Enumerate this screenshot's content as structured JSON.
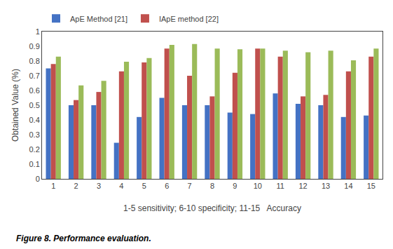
{
  "chart_data": {
    "type": "bar",
    "categories": [
      1,
      2,
      3,
      4,
      5,
      6,
      7,
      8,
      9,
      10,
      11,
      12,
      13,
      14,
      15
    ],
    "series": [
      {
        "name": "ApE Method [21]",
        "color": "#4472C4",
        "values": [
          0.75,
          0.5,
          0.5,
          0.245,
          0.42,
          0.55,
          0.5,
          0.5,
          0.45,
          0.44,
          0.58,
          0.51,
          0.5,
          0.42,
          0.43
        ]
      },
      {
        "name": "IApE method [22]",
        "color": "#C0504D",
        "values": [
          0.78,
          0.535,
          0.59,
          0.73,
          0.79,
          0.885,
          0.7,
          0.56,
          0.72,
          0.885,
          0.83,
          0.56,
          0.57,
          0.73,
          0.83
        ]
      },
      {
        "color": "#9BBB59",
        "values": [
          0.83,
          0.635,
          0.665,
          0.795,
          0.82,
          0.91,
          0.915,
          0.885,
          0.88,
          0.885,
          0.87,
          0.86,
          0.87,
          0.805,
          0.885
        ]
      }
    ],
    "xlabel": "1-5 sensitivity; 6-10 specificity; 11-15   Accuracy",
    "ylabel": "Obtained Value (%)",
    "caption": "Figure 8. Performance evaluation.",
    "ylim": [
      0,
      1.0
    ],
    "yticks": [
      0,
      0.1,
      0.2,
      0.3,
      0.4,
      0.5,
      0.6,
      0.7,
      0.8,
      0.9,
      1
    ],
    "grid": false,
    "legend": "top"
  }
}
